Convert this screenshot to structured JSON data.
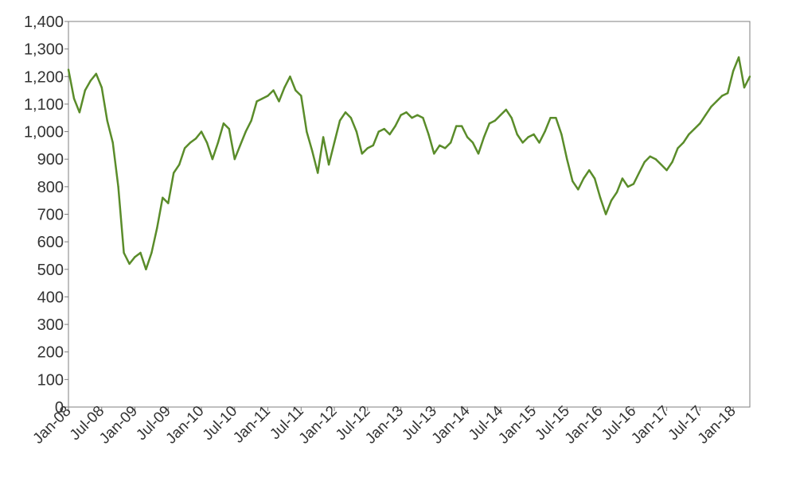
{
  "chart_data": {
    "type": "line",
    "title": "",
    "xlabel": "",
    "ylabel": "",
    "ylim": [
      0,
      1400
    ],
    "xlim": [
      "2008-01",
      "2018-03"
    ],
    "grid": false,
    "legend": "none",
    "yticks": [
      0,
      100,
      200,
      300,
      400,
      500,
      600,
      700,
      800,
      900,
      1000,
      1100,
      1200,
      1300,
      1400
    ],
    "ytick_labels": [
      "0",
      "100",
      "200",
      "300",
      "400",
      "500",
      "600",
      "700",
      "800",
      "900",
      "1,000",
      "1,100",
      "1,200",
      "1,300",
      "1,400"
    ],
    "xticks": [
      "2008-01",
      "2008-07",
      "2009-01",
      "2009-07",
      "2010-01",
      "2010-07",
      "2011-01",
      "2011-07",
      "2012-01",
      "2012-07",
      "2013-01",
      "2013-07",
      "2014-01",
      "2014-07",
      "2015-01",
      "2015-07",
      "2016-01",
      "2016-07",
      "2017-01",
      "2017-07",
      "2018-01"
    ],
    "xtick_labels": [
      "Jan-08",
      "Jul-08",
      "Jan-09",
      "Jul-09",
      "Jan-10",
      "Jul-10",
      "Jan-11",
      "Jul-11",
      "Jan-12",
      "Jul-12",
      "Jan-13",
      "Jul-13",
      "Jan-14",
      "Jul-14",
      "Jan-15",
      "Jul-15",
      "Jan-16",
      "Jul-16",
      "Jan-17",
      "Jul-17",
      "Jan-18"
    ],
    "series": [
      {
        "color": "#5a8c2a",
        "points": [
          [
            "2008-01",
            1225
          ],
          [
            "2008-02",
            1120
          ],
          [
            "2008-03",
            1070
          ],
          [
            "2008-04",
            1150
          ],
          [
            "2008-05",
            1185
          ],
          [
            "2008-06",
            1210
          ],
          [
            "2008-07",
            1160
          ],
          [
            "2008-08",
            1040
          ],
          [
            "2008-09",
            960
          ],
          [
            "2008-10",
            800
          ],
          [
            "2008-11",
            560
          ],
          [
            "2008-12",
            520
          ],
          [
            "2009-01",
            545
          ],
          [
            "2009-02",
            560
          ],
          [
            "2009-03",
            500
          ],
          [
            "2009-04",
            560
          ],
          [
            "2009-05",
            650
          ],
          [
            "2009-06",
            760
          ],
          [
            "2009-07",
            740
          ],
          [
            "2009-08",
            850
          ],
          [
            "2009-09",
            880
          ],
          [
            "2009-10",
            940
          ],
          [
            "2009-11",
            960
          ],
          [
            "2009-12",
            975
          ],
          [
            "2010-01",
            1000
          ],
          [
            "2010-02",
            960
          ],
          [
            "2010-03",
            900
          ],
          [
            "2010-04",
            960
          ],
          [
            "2010-05",
            1030
          ],
          [
            "2010-06",
            1010
          ],
          [
            "2010-07",
            900
          ],
          [
            "2010-08",
            950
          ],
          [
            "2010-09",
            1000
          ],
          [
            "2010-10",
            1040
          ],
          [
            "2010-11",
            1110
          ],
          [
            "2010-12",
            1120
          ],
          [
            "2011-01",
            1130
          ],
          [
            "2011-02",
            1150
          ],
          [
            "2011-03",
            1110
          ],
          [
            "2011-04",
            1160
          ],
          [
            "2011-05",
            1200
          ],
          [
            "2011-06",
            1150
          ],
          [
            "2011-07",
            1130
          ],
          [
            "2011-08",
            1000
          ],
          [
            "2011-09",
            930
          ],
          [
            "2011-10",
            850
          ],
          [
            "2011-11",
            980
          ],
          [
            "2011-12",
            880
          ],
          [
            "2012-01",
            960
          ],
          [
            "2012-02",
            1040
          ],
          [
            "2012-03",
            1070
          ],
          [
            "2012-04",
            1050
          ],
          [
            "2012-05",
            1000
          ],
          [
            "2012-06",
            920
          ],
          [
            "2012-07",
            940
          ],
          [
            "2012-08",
            950
          ],
          [
            "2012-09",
            1000
          ],
          [
            "2012-10",
            1010
          ],
          [
            "2012-11",
            990
          ],
          [
            "2012-12",
            1020
          ],
          [
            "2013-01",
            1060
          ],
          [
            "2013-02",
            1070
          ],
          [
            "2013-03",
            1050
          ],
          [
            "2013-04",
            1060
          ],
          [
            "2013-05",
            1050
          ],
          [
            "2013-06",
            990
          ],
          [
            "2013-07",
            920
          ],
          [
            "2013-08",
            950
          ],
          [
            "2013-09",
            940
          ],
          [
            "2013-10",
            960
          ],
          [
            "2013-11",
            1020
          ],
          [
            "2013-12",
            1020
          ],
          [
            "2014-01",
            980
          ],
          [
            "2014-02",
            960
          ],
          [
            "2014-03",
            920
          ],
          [
            "2014-04",
            980
          ],
          [
            "2014-05",
            1030
          ],
          [
            "2014-06",
            1040
          ],
          [
            "2014-07",
            1060
          ],
          [
            "2014-08",
            1080
          ],
          [
            "2014-09",
            1050
          ],
          [
            "2014-10",
            990
          ],
          [
            "2014-11",
            960
          ],
          [
            "2014-12",
            980
          ],
          [
            "2015-01",
            990
          ],
          [
            "2015-02",
            960
          ],
          [
            "2015-03",
            1000
          ],
          [
            "2015-04",
            1050
          ],
          [
            "2015-05",
            1050
          ],
          [
            "2015-06",
            990
          ],
          [
            "2015-07",
            900
          ],
          [
            "2015-08",
            820
          ],
          [
            "2015-09",
            790
          ],
          [
            "2015-10",
            830
          ],
          [
            "2015-11",
            860
          ],
          [
            "2015-12",
            830
          ],
          [
            "2016-01",
            760
          ],
          [
            "2016-02",
            700
          ],
          [
            "2016-03",
            750
          ],
          [
            "2016-04",
            780
          ],
          [
            "2016-05",
            830
          ],
          [
            "2016-06",
            800
          ],
          [
            "2016-07",
            810
          ],
          [
            "2016-08",
            850
          ],
          [
            "2016-09",
            890
          ],
          [
            "2016-10",
            910
          ],
          [
            "2016-11",
            900
          ],
          [
            "2016-12",
            880
          ],
          [
            "2017-01",
            860
          ],
          [
            "2017-02",
            890
          ],
          [
            "2017-03",
            940
          ],
          [
            "2017-04",
            960
          ],
          [
            "2017-05",
            990
          ],
          [
            "2017-06",
            1010
          ],
          [
            "2017-07",
            1030
          ],
          [
            "2017-08",
            1060
          ],
          [
            "2017-09",
            1090
          ],
          [
            "2017-10",
            1110
          ],
          [
            "2017-11",
            1130
          ],
          [
            "2017-12",
            1140
          ],
          [
            "2018-01",
            1220
          ],
          [
            "2018-02",
            1270
          ],
          [
            "2018-03",
            1160
          ],
          [
            "2018-04",
            1200
          ]
        ]
      }
    ]
  }
}
